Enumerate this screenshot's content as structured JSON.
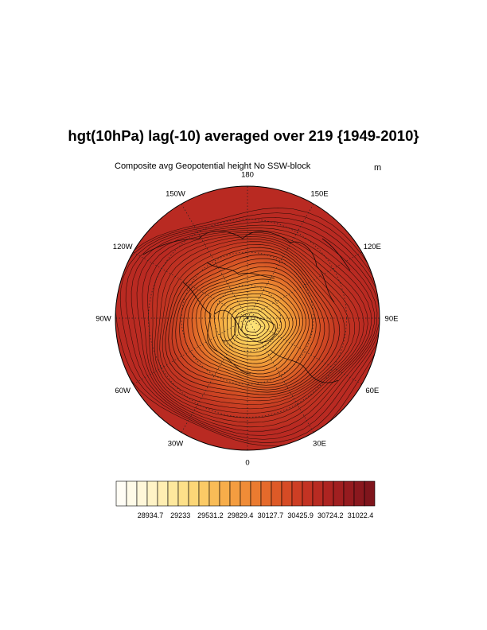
{
  "title": "hgt(10hPa) lag(-10) averaged over 219 {1949-2010}",
  "subtitle": "Composite avg Geopotential height No SSW-block",
  "units": "m",
  "longitude_labels": [
    "180",
    "150E",
    "120E",
    "90E",
    "60E",
    "30E",
    "0",
    "30W",
    "60W",
    "90W",
    "120W",
    "150W"
  ],
  "colorbar": {
    "labels": [
      "28934.7",
      "29233",
      "29531.2",
      "29829.4",
      "30127.7",
      "30425.9",
      "30724.2",
      "31022.4"
    ],
    "colors": [
      "#fffdf5",
      "#fffbe8",
      "#fff7d9",
      "#fff3c6",
      "#ffeeb2",
      "#fee89d",
      "#fde089",
      "#fcd677",
      "#fbca66",
      "#f9bc57",
      "#f7ad4a",
      "#f49d40",
      "#f08c37",
      "#eb7b30",
      "#e56a2b",
      "#de5a27",
      "#d64b25",
      "#cd3e24",
      "#c33323",
      "#b82b22",
      "#ad2421",
      "#a11f20",
      "#951b1f",
      "#8a181e",
      "#7f151c"
    ]
  },
  "map": {
    "projection": "north polar stereographic",
    "field": "Geopotential height",
    "center_color": "#fbd35c",
    "edge_color": "#bb2a22"
  }
}
